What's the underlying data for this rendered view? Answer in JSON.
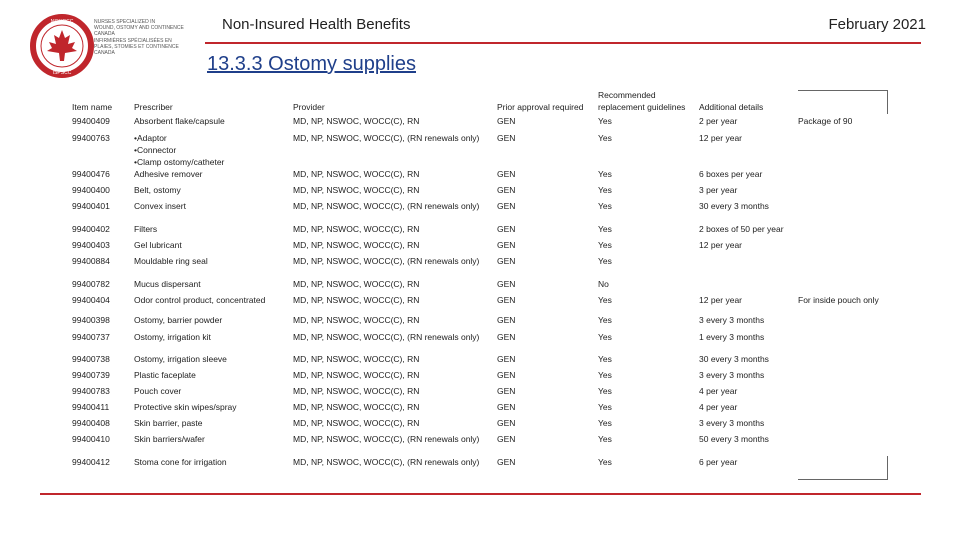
{
  "header": {
    "title": "Non-Insured Health Benefits",
    "date": "February 2021",
    "section": "13.3.3 Ostomy supplies",
    "logo": {
      "ring": [
        "NSWOCC",
        "ISPSCC"
      ],
      "lines": [
        "NURSES SPECIALIZED IN",
        "WOUND, OSTOMY AND CONTINENCE",
        "CANADA",
        "INFIRMIÈRES SPÉCIALISÉES EN",
        "PLAIES, STOMIES ET CONTINENCE",
        "CANADA"
      ]
    }
  },
  "table": {
    "columns": [
      "Item name",
      "Prescriber",
      "Provider",
      "Prior approval required",
      [
        "Recommended",
        "replacement guidelines"
      ],
      "Additional details"
    ],
    "rows": [
      [
        "99400409",
        "Absorbent flake/capsule",
        "MD, NP, NSWOC, WOCC(C), RN",
        "GEN",
        "Yes",
        "2 per year",
        "Package of 90"
      ],
      [
        "99400763",
        [
          "•Adaptor",
          "•Connector",
          "•Clamp ostomy/catheter"
        ],
        "MD, NP, NSWOC, WOCC(C), (RN renewals only)",
        "GEN",
        "Yes",
        "12 per year"
      ],
      [
        "99400476",
        "Adhesive remover",
        "MD, NP, NSWOC, WOCC(C), RN",
        "GEN",
        "Yes",
        "6 boxes per year"
      ],
      [
        "99400400",
        "Belt, ostomy",
        "MD, NP, NSWOC, WOCC(C), RN",
        "GEN",
        "Yes",
        "3 per year"
      ],
      [
        "99400401",
        "Convex insert",
        "MD, NP, NSWOC, WOCC(C), (RN renewals only)",
        "GEN",
        "Yes",
        "30 every 3 months"
      ],
      [
        "99400402",
        "Filters",
        "MD, NP, NSWOC, WOCC(C), RN",
        "GEN",
        "Yes",
        "2 boxes of 50 per year"
      ],
      [
        "99400403",
        "Gel lubricant",
        "MD, NP, NSWOC, WOCC(C), RN",
        "GEN",
        "Yes",
        "12 per year"
      ],
      [
        "99400884",
        "Mouldable ring seal",
        "MD, NP, NSWOC, WOCC(C), (RN renewals only)",
        "GEN",
        "Yes"
      ],
      [
        "99400782",
        "Mucus dispersant",
        "MD, NP, NSWOC, WOCC(C), RN",
        "GEN",
        "No"
      ],
      [
        "99400404",
        "Odor control product, concentrated",
        "MD, NP, NSWOC, WOCC(C), RN",
        "GEN",
        "Yes",
        "12 per year",
        "For inside pouch only"
      ],
      [
        "99400398",
        "Ostomy, barrier powder",
        "MD, NP, NSWOC, WOCC(C), RN",
        "GEN",
        "Yes",
        "3 every 3 months"
      ],
      [
        "99400737",
        "Ostomy, irrigation kit",
        "MD, NP, NSWOC, WOCC(C), (RN renewals only)",
        "GEN",
        "Yes",
        "1 every 3 months"
      ],
      [
        "99400738",
        "Ostomy, irrigation sleeve",
        "MD, NP, NSWOC, WOCC(C), RN",
        "GEN",
        "Yes",
        "30 every 3 months"
      ],
      [
        "99400739",
        "Plastic faceplate",
        "MD, NP, NSWOC, WOCC(C), RN",
        "GEN",
        "Yes",
        "3 every 3 months"
      ],
      [
        "99400783",
        "Pouch cover",
        "MD, NP, NSWOC, WOCC(C), RN",
        "GEN",
        "Yes",
        "4 per year"
      ],
      [
        "99400411",
        "Protective skin wipes/spray",
        "MD, NP, NSWOC, WOCC(C), RN",
        "GEN",
        "Yes",
        "4 per year"
      ],
      [
        "99400408",
        "Skin barrier, paste",
        "MD, NP, NSWOC, WOCC(C), RN",
        "GEN",
        "Yes",
        "3 every 3 months"
      ],
      [
        "99400410",
        "Skin barriers/wafer",
        "MD, NP, NSWOC, WOCC(C), (RN renewals only)",
        "GEN",
        "Yes",
        "50 every 3 months"
      ],
      [
        "99400412",
        "Stoma cone for irrigation",
        "MD, NP, NSWOC, WOCC(C), (RN renewals only)",
        "GEN",
        "Yes",
        "6 per year"
      ]
    ]
  }
}
